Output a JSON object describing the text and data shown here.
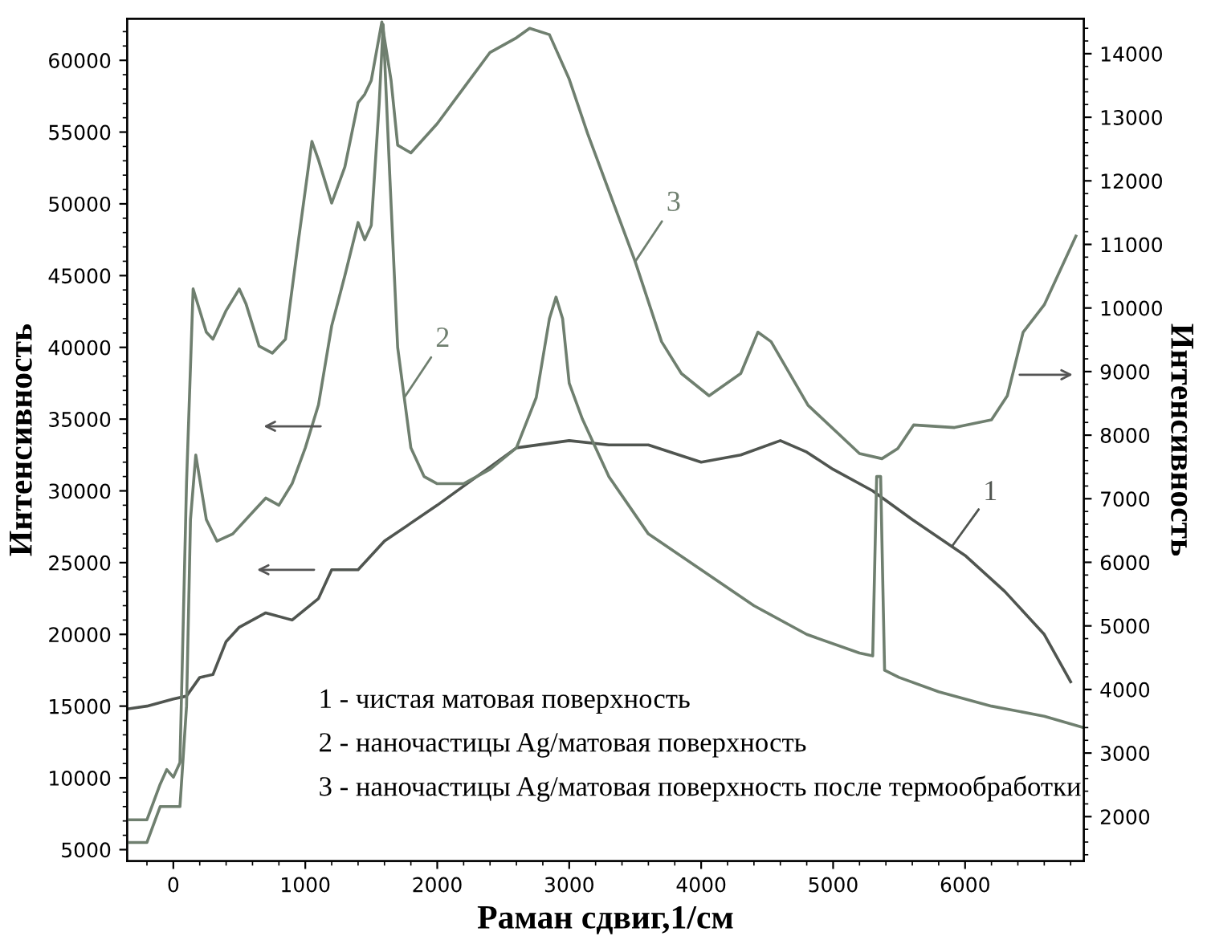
{
  "chart_data": {
    "type": "line",
    "xlabel": "Раман сдвиг,1/см",
    "ylabel": "Интенсивность",
    "y2label": "Интенсивность",
    "xlim": [
      -350,
      6900
    ],
    "xticks": [
      0,
      1000,
      2000,
      3000,
      4000,
      5000,
      6000
    ],
    "ylim": [
      4200,
      62900
    ],
    "yticks": [
      5000,
      10000,
      15000,
      20000,
      25000,
      30000,
      35000,
      40000,
      45000,
      50000,
      55000,
      60000
    ],
    "y2lim": [
      1300,
      14550
    ],
    "y2ticks": [
      2000,
      3000,
      4000,
      5000,
      6000,
      7000,
      8000,
      9000,
      10000,
      11000,
      12000,
      13000,
      14000
    ],
    "grid": false,
    "marker": "none",
    "line_style": "solid",
    "series": [
      {
        "name": "1",
        "color": "#505550",
        "x": [
          -350,
          -200,
          0,
          100,
          200,
          300,
          400,
          500,
          700,
          900,
          1100,
          1200,
          1400,
          1600,
          2000,
          2300,
          2600,
          3000,
          3300,
          3600,
          4000,
          4300,
          4600,
          4800,
          5000,
          5300,
          5600,
          6000,
          6300,
          6600,
          6800
        ],
        "values": [
          14800,
          15000,
          15500,
          15700,
          17000,
          17200,
          19500,
          20500,
          21500,
          21000,
          22500,
          24500,
          24500,
          26500,
          29000,
          31000,
          33000,
          33500,
          33200,
          33200,
          32000,
          32500,
          33500,
          32700,
          31500,
          30000,
          28000,
          25500,
          23000,
          20000,
          16700
        ]
      },
      {
        "name": "2",
        "color": "#6f7f6f",
        "x": [
          -330,
          -200,
          -100,
          50,
          100,
          130,
          170,
          250,
          330,
          450,
          600,
          700,
          800,
          900,
          1000,
          1100,
          1200,
          1300,
          1400,
          1450,
          1500,
          1560,
          1590,
          1640,
          1700,
          1800,
          1900,
          2000,
          2200,
          2400,
          2600,
          2750,
          2850,
          2900,
          2950,
          3000,
          3100,
          3300,
          3600,
          4000,
          4400,
          4800,
          5200,
          5300,
          5330,
          5360,
          5390,
          5500,
          5800,
          6200,
          6600,
          6900
        ],
        "values": [
          5500,
          5500,
          8000,
          8000,
          15000,
          28000,
          32500,
          28000,
          26500,
          27000,
          28500,
          29500,
          29000,
          30500,
          33000,
          36000,
          41500,
          45000,
          48700,
          47500,
          48500,
          57000,
          62500,
          52000,
          40000,
          33000,
          31000,
          30500,
          30500,
          31500,
          33000,
          36500,
          42000,
          43500,
          42000,
          37500,
          35000,
          31000,
          27000,
          24500,
          22000,
          20000,
          18700,
          18500,
          31000,
          31000,
          17500,
          17000,
          16000,
          15000,
          14300,
          13500
        ]
      },
      {
        "name": "3",
        "color": "#6f7f6f",
        "axis": "y2",
        "x": [
          -330,
          -200,
          -100,
          -50,
          0,
          50,
          100,
          150,
          250,
          300,
          400,
          500,
          550,
          650,
          750,
          850,
          950,
          1050,
          1100,
          1200,
          1300,
          1400,
          1450,
          1500,
          1580,
          1650,
          1700,
          1800,
          2000,
          2200,
          2400,
          2600,
          2700,
          2850,
          3000,
          3140,
          3500,
          3700,
          3850,
          4060,
          4300,
          4430,
          4530,
          4810,
          5200,
          5370,
          5490,
          5610,
          5920,
          6200,
          6320,
          6440,
          6600,
          6840
        ],
        "values": [
          1950,
          1950,
          2510,
          2740,
          2620,
          2850,
          7250,
          10300,
          9620,
          9510,
          9960,
          10300,
          10070,
          9400,
          9290,
          9510,
          11090,
          12620,
          12330,
          11650,
          12220,
          13230,
          13360,
          13580,
          14500,
          13580,
          12560,
          12440,
          12900,
          13460,
          14020,
          14250,
          14400,
          14300,
          13600,
          12740,
          10730,
          9470,
          8970,
          8620,
          8970,
          9620,
          9470,
          8470,
          7710,
          7630,
          7790,
          8160,
          8120,
          8240,
          8620,
          9620,
          10050,
          11130
        ]
      }
    ],
    "annotations": [
      "1 - чистая матовая поверхность",
      "2 - наночастицы Ag/матовая поверхность",
      "3 - наночастицы Ag/матовая поверхность после термообработки"
    ]
  }
}
